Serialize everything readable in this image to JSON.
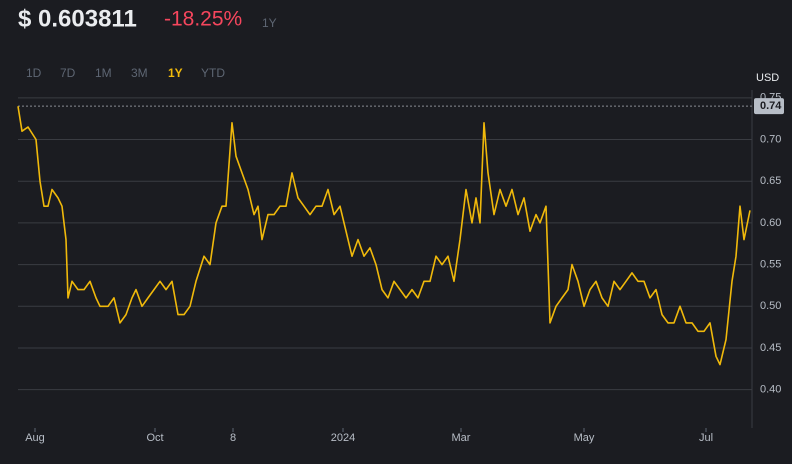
{
  "header": {
    "price": "$ 0.603811",
    "change": "-18.25%",
    "period": "1Y"
  },
  "timeframes": [
    "1D",
    "7D",
    "1M",
    "3M",
    "1Y",
    "YTD"
  ],
  "active_timeframe": "1Y",
  "chart_data": {
    "type": "line",
    "ylabel": "USD",
    "color": "#f0b90b",
    "grid": true,
    "x": [
      0,
      2,
      5,
      9,
      11,
      13,
      15,
      17,
      20,
      22,
      24,
      25,
      27,
      30,
      33,
      36,
      39,
      41,
      45,
      48,
      51,
      54,
      57,
      59,
      62,
      65,
      68,
      71,
      74,
      77,
      80,
      83,
      86,
      89,
      93,
      96,
      99,
      102,
      104,
      107,
      109,
      112,
      115,
      118,
      120,
      122,
      125,
      128,
      131,
      134,
      137,
      140,
      143,
      146,
      149,
      152,
      155,
      158,
      161,
      164,
      167,
      170,
      173,
      176,
      179,
      182,
      185,
      188,
      191,
      194,
      197,
      200,
      203,
      206,
      209,
      212,
      215,
      218,
      221,
      224,
      227,
      229,
      231,
      233,
      235,
      238,
      241,
      244,
      247,
      250,
      253,
      256,
      259,
      261,
      264,
      266,
      269,
      272,
      275,
      277,
      280,
      283,
      286,
      289,
      292,
      295,
      298,
      301,
      304,
      307,
      310,
      313,
      316,
      319,
      322,
      325,
      328,
      331,
      334,
      337,
      340,
      343,
      346,
      349,
      351,
      354,
      357,
      359,
      361,
      363,
      366
    ],
    "values": [
      0.74,
      0.71,
      0.715,
      0.7,
      0.65,
      0.62,
      0.62,
      0.64,
      0.63,
      0.62,
      0.58,
      0.51,
      0.53,
      0.52,
      0.52,
      0.53,
      0.51,
      0.5,
      0.5,
      0.51,
      0.48,
      0.49,
      0.51,
      0.52,
      0.5,
      0.51,
      0.52,
      0.53,
      0.52,
      0.53,
      0.49,
      0.49,
      0.5,
      0.53,
      0.56,
      0.55,
      0.6,
      0.62,
      0.62,
      0.72,
      0.68,
      0.66,
      0.64,
      0.61,
      0.62,
      0.58,
      0.61,
      0.61,
      0.62,
      0.62,
      0.66,
      0.63,
      0.62,
      0.61,
      0.62,
      0.62,
      0.64,
      0.61,
      0.62,
      0.59,
      0.56,
      0.58,
      0.56,
      0.57,
      0.55,
      0.52,
      0.51,
      0.53,
      0.52,
      0.51,
      0.52,
      0.51,
      0.53,
      0.53,
      0.56,
      0.55,
      0.56,
      0.53,
      0.58,
      0.64,
      0.6,
      0.63,
      0.6,
      0.72,
      0.66,
      0.61,
      0.64,
      0.62,
      0.64,
      0.61,
      0.63,
      0.59,
      0.61,
      0.6,
      0.62,
      0.48,
      0.5,
      0.51,
      0.52,
      0.55,
      0.53,
      0.5,
      0.52,
      0.53,
      0.51,
      0.5,
      0.53,
      0.52,
      0.53,
      0.54,
      0.53,
      0.53,
      0.51,
      0.52,
      0.49,
      0.48,
      0.48,
      0.5,
      0.48,
      0.48,
      0.47,
      0.47,
      0.48,
      0.44,
      0.43,
      0.46,
      0.53,
      0.56,
      0.62,
      0.58,
      0.615
    ],
    "xlim": [
      0,
      366
    ],
    "xticks": [
      {
        "value": 8.5,
        "label": "Aug"
      },
      {
        "value": 68.5,
        "label": "Oct"
      },
      {
        "value": 107.5,
        "label": "8"
      },
      {
        "value": 162.5,
        "label": "2024"
      },
      {
        "value": 221.5,
        "label": "Mar"
      },
      {
        "value": 283,
        "label": "May"
      },
      {
        "value": 344,
        "label": "Jul"
      }
    ],
    "ylim": [
      0.354,
      0.757
    ],
    "yticks": [
      {
        "value": 0.4,
        "label": "0.40"
      },
      {
        "value": 0.45,
        "label": "0.45"
      },
      {
        "value": 0.5,
        "label": "0.50"
      },
      {
        "value": 0.55,
        "label": "0.55"
      },
      {
        "value": 0.6,
        "label": "0.60"
      },
      {
        "value": 0.65,
        "label": "0.65"
      },
      {
        "value": 0.7,
        "label": "0.70"
      },
      {
        "value": 0.75,
        "label": "0.75"
      }
    ],
    "price_line": 0.74
  }
}
